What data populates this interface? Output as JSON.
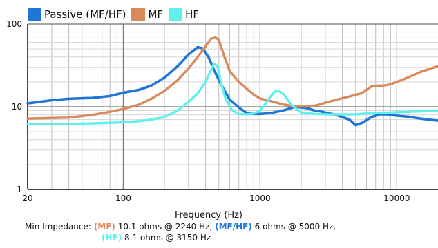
{
  "chart_data": {
    "type": "line",
    "title": "",
    "xlabel": "Frequency (Hz)",
    "ylabel": "",
    "x_scale": "log",
    "y_scale": "log",
    "xlim": [
      20,
      20000
    ],
    "ylim": [
      1,
      100
    ],
    "grid": true,
    "legend": {
      "placement": "top-left",
      "entries": [
        "Passive (MF/HF)",
        "MF",
        "HF"
      ]
    },
    "x_ticks": [
      20,
      100,
      1000,
      10000
    ],
    "x_tick_labels": [
      "20",
      "100",
      "1000",
      "10000"
    ],
    "y_ticks": [
      1,
      10,
      100
    ],
    "y_tick_labels": [
      "1",
      "10",
      "100"
    ],
    "series": [
      {
        "name": "Passive (MF/HF)",
        "color": "#1f76d4",
        "x": [
          20,
          30,
          40,
          60,
          80,
          100,
          130,
          160,
          200,
          250,
          300,
          350,
          380,
          420,
          460,
          520,
          600,
          700,
          800,
          900,
          1000,
          1200,
          1500,
          1800,
          2240,
          2500,
          2800,
          3000,
          3500,
          4000,
          4500,
          5000,
          5600,
          6500,
          7500,
          8500,
          10000,
          12000,
          14000,
          17000,
          20000
        ],
        "y": [
          11,
          12,
          12.5,
          12.8,
          13.5,
          14.8,
          16,
          18,
          22.5,
          31,
          43,
          52.5,
          51,
          40,
          28,
          18.5,
          12.2,
          9.8,
          8.4,
          8.2,
          8.2,
          8.4,
          9.1,
          10,
          9.6,
          9,
          8.8,
          8.5,
          8.1,
          7.5,
          7,
          6,
          6.4,
          7.5,
          8.1,
          8.1,
          7.8,
          7.6,
          7.3,
          7,
          6.8
        ]
      },
      {
        "name": "MF",
        "color": "#d9895a",
        "x": [
          20,
          40,
          60,
          80,
          100,
          130,
          160,
          200,
          250,
          300,
          350,
          400,
          440,
          470,
          500,
          550,
          600,
          700,
          800,
          900,
          1000,
          1200,
          1500,
          1800,
          2000,
          2240,
          2600,
          3000,
          3500,
          4000,
          4500,
          5000,
          5500,
          6000,
          6500,
          7000,
          8000,
          9000,
          10000,
          12000,
          15000,
          20000
        ],
        "y": [
          7.2,
          7.4,
          8,
          8.7,
          9.4,
          10.6,
          12.5,
          15.5,
          21,
          29,
          40,
          54,
          67,
          70,
          64,
          40,
          27,
          20,
          16.5,
          14,
          12.6,
          11.7,
          10.6,
          10.2,
          10.1,
          10.1,
          10.4,
          11.2,
          12,
          12.7,
          13.3,
          14,
          14.5,
          16,
          17.5,
          18,
          18,
          18.7,
          20,
          22.5,
          26.5,
          31
        ]
      },
      {
        "name": "HF",
        "color": "#5ff0ec",
        "x": [
          20,
          40,
          60,
          80,
          100,
          130,
          160,
          200,
          250,
          300,
          350,
          400,
          430,
          460,
          490,
          520,
          560,
          620,
          700,
          800,
          900,
          1000,
          1100,
          1200,
          1300,
          1400,
          1500,
          1700,
          2000,
          2500,
          3150,
          4000,
          5000,
          6000,
          8000,
          10000,
          15000,
          20000
        ],
        "y": [
          6.2,
          6.2,
          6.3,
          6.4,
          6.5,
          6.7,
          7,
          7.5,
          9,
          11.5,
          14.5,
          20,
          26,
          33,
          31,
          19,
          12.5,
          9.2,
          8.2,
          8.1,
          8.3,
          9,
          11,
          13.5,
          15.5,
          15.2,
          14,
          10.5,
          8.5,
          8.2,
          8.1,
          8.1,
          8.1,
          8.3,
          8.4,
          8.6,
          8.8,
          9
        ]
      }
    ]
  },
  "annotation": {
    "label": "Min Impedance:",
    "entries": [
      {
        "band": "(MF)",
        "text": "10.1 ohms @ 2240 Hz,",
        "color": "#d9895a"
      },
      {
        "band": "(MF/HF)",
        "text": "6 ohms @ 5000 Hz,",
        "color": "#1f76d4"
      },
      {
        "band": "(HF)",
        "text": "8.1 ohms @ 3150 Hz",
        "color": "#5ff0ec"
      }
    ]
  }
}
